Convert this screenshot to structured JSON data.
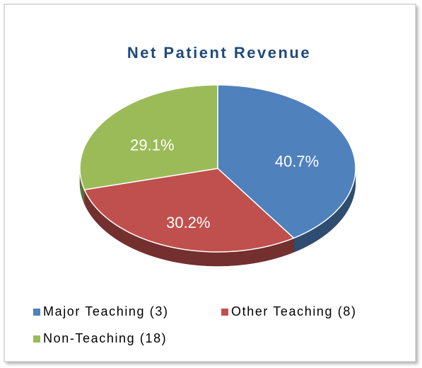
{
  "chart_data": {
    "type": "pie",
    "title": "Net Patient Revenue",
    "categories": [
      "Major Teaching (3)",
      "Other Teaching (8)",
      "Non-Teaching (18)"
    ],
    "values": [
      40.7,
      30.2,
      29.1
    ],
    "value_labels": [
      "40.7%",
      "30.2%",
      "29.1%"
    ],
    "colors": [
      "#4f81bd",
      "#c0504d",
      "#9bbb59"
    ]
  }
}
